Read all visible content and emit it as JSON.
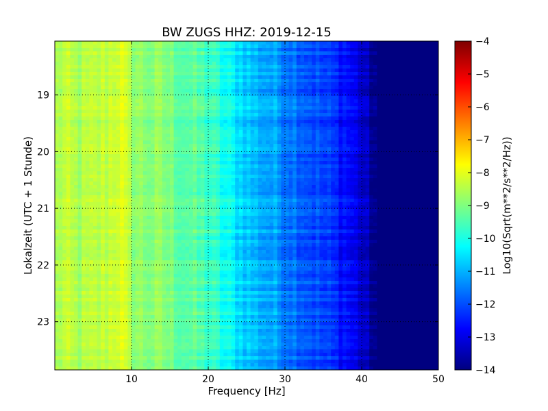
{
  "chart_data": {
    "type": "heatmap",
    "title": "BW ZUGS HHZ: 2019-12-15",
    "xlabel": "Frequency [Hz]",
    "ylabel": "Lokalzeit (UTC + 1 Stunde)",
    "xlim": [
      0,
      50
    ],
    "ylim": [
      18.05,
      23.85
    ],
    "y_inverted": true,
    "grid": true,
    "x_ticks": [
      10,
      20,
      30,
      40,
      50
    ],
    "x_tick_labels": [
      "10",
      "20",
      "30",
      "40",
      "50"
    ],
    "y_ticks": [
      19,
      20,
      21,
      22,
      23
    ],
    "y_tick_labels": [
      "19",
      "20",
      "21",
      "22",
      "23"
    ],
    "colormap": "jet",
    "colorbar": {
      "label": "Log10(Sqrt(m**2/s**2/Hz))",
      "range": [
        -14,
        -4
      ],
      "ticks": [
        -4,
        -5,
        -6,
        -7,
        -8,
        -9,
        -10,
        -11,
        -12,
        -13,
        -14
      ],
      "tick_labels": [
        "−4",
        "−5",
        "−6",
        "−7",
        "−8",
        "−9",
        "−10",
        "−11",
        "−12",
        "−13",
        "−14"
      ]
    },
    "spectrum_profile": {
      "frequency_hz": [
        0,
        1,
        3,
        5,
        7,
        8.5,
        10,
        12,
        14,
        16,
        18,
        20,
        22,
        24,
        26,
        28,
        30,
        32,
        34,
        36,
        38,
        39.5,
        40.5,
        42,
        43,
        50
      ],
      "level": [
        -8.7,
        -8.4,
        -8.6,
        -8.5,
        -8.3,
        -8.0,
        -8.7,
        -8.9,
        -8.9,
        -9.2,
        -9.4,
        -9.6,
        -10.1,
        -10.5,
        -10.9,
        -11.1,
        -11.4,
        -11.7,
        -12.0,
        -12.3,
        -12.6,
        -13.0,
        -13.4,
        -14.0,
        -14.0,
        -14.0
      ]
    }
  }
}
